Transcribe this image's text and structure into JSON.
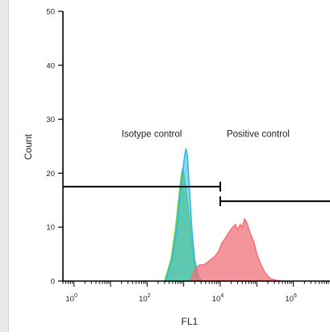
{
  "chart_data": {
    "type": "area",
    "xlabel": "FL1",
    "ylabel": "Count",
    "x_scale": "log",
    "xlim": [
      0.5,
      10000000
    ],
    "ylim": [
      0,
      50
    ],
    "y_ticks": [
      0,
      10,
      20,
      30,
      40,
      50
    ],
    "x_tick_labels": [
      {
        "base": "10",
        "exp": "0"
      },
      {
        "base": "10",
        "exp": "2"
      },
      {
        "base": "10",
        "exp": "4"
      },
      {
        "base": "10",
        "exp": "6"
      }
    ],
    "x_tick_values": [
      1,
      100,
      10000,
      1000000
    ],
    "annotations": [
      {
        "text": "Isotype control",
        "x": 20,
        "y": 27
      },
      {
        "text": "Positive control",
        "x": 15000,
        "y": 27
      }
    ],
    "gates": [
      {
        "x_start": 0.5,
        "x_end": 10000,
        "y": 17.5
      },
      {
        "x_start": 10000,
        "x_end": 10000000,
        "y": 14.8
      }
    ],
    "series": [
      {
        "color": "#7cd23f",
        "x": [
          300,
          450,
          600,
          750,
          850,
          950,
          1050,
          1150,
          1300,
          1450,
          1600,
          1800,
          2000,
          2300,
          2700,
          3200
        ],
        "y": [
          0,
          4,
          10,
          16,
          19.5,
          21,
          19,
          17,
          14,
          11,
          8,
          5,
          3,
          1.5,
          0.5,
          0
        ]
      },
      {
        "color": "#29b8e6",
        "x": [
          320,
          480,
          650,
          800,
          950,
          1050,
          1150,
          1250,
          1350,
          1500,
          1700,
          2000,
          2500,
          3200
        ],
        "y": [
          0,
          4,
          10,
          16,
          20.5,
          23,
          24.6,
          23.5,
          20,
          15,
          9,
          4,
          1,
          0
        ]
      },
      {
        "color": "#f0707a",
        "x": [
          1500,
          2000,
          2700,
          3500,
          4500,
          5500,
          7000,
          9000,
          11000,
          14000,
          17000,
          22000,
          26000,
          30000,
          35000,
          40000,
          46000,
          52000,
          58000,
          65000,
          75000,
          85000,
          100000,
          130000,
          170000,
          230000,
          320000,
          450000
        ],
        "y": [
          0,
          2,
          3,
          3,
          3.5,
          4,
          4.5,
          5.5,
          7,
          8,
          9,
          10,
          10.5,
          9.5,
          10.5,
          10,
          11.5,
          11,
          10,
          9,
          8,
          7,
          5,
          3,
          1.5,
          0.5,
          0.2,
          0
        ]
      }
    ]
  }
}
